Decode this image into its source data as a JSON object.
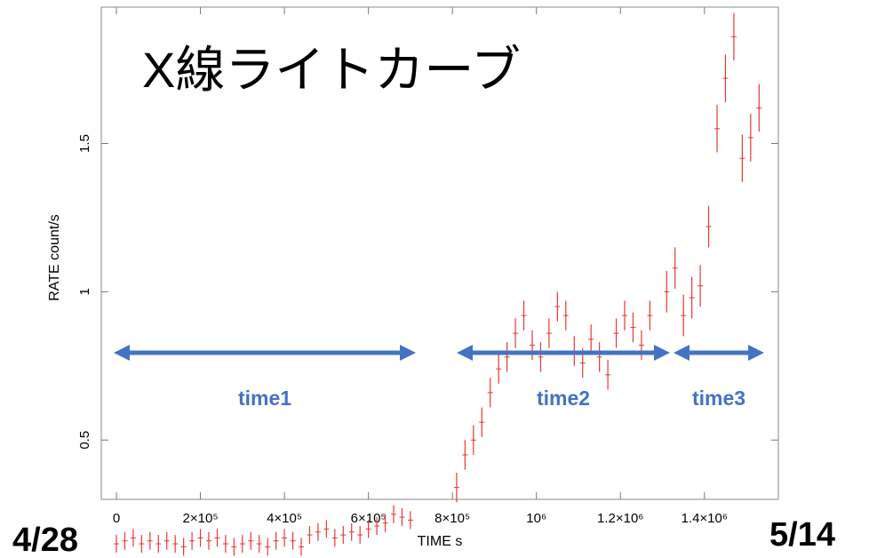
{
  "slide": {
    "title": "X線ライトカーブ",
    "date_start": "4/28",
    "date_end": "5/14"
  },
  "colors": {
    "points": "#e53935",
    "arrow": "#4472c4",
    "axis": "#555555",
    "text": "#000000"
  },
  "chart_data": {
    "type": "scatter",
    "title": "",
    "xlabel": "TIME  s",
    "ylabel": "RATE  count/s",
    "xlim": [
      0,
      1540000
    ],
    "ylim": [
      0.3,
      1.96
    ],
    "x_ticks": [
      {
        "value": 0,
        "label": "0"
      },
      {
        "value": 200000,
        "label": "2×10⁵"
      },
      {
        "value": 400000,
        "label": "4×10⁵"
      },
      {
        "value": 600000,
        "label": "6×10⁵"
      },
      {
        "value": 800000,
        "label": "8×10⁵"
      },
      {
        "value": 1000000,
        "label": "10⁶"
      },
      {
        "value": 1200000,
        "label": "1.2×10⁶"
      },
      {
        "value": 1400000,
        "label": "1.4×10⁶"
      }
    ],
    "y_ticks": [
      {
        "value": 0.5,
        "label": "0.5"
      },
      {
        "value": 1,
        "label": "1"
      },
      {
        "value": 1.5,
        "label": "1.5"
      }
    ],
    "series": [
      {
        "x": [
          0,
          20000,
          40000,
          60000,
          80000,
          100000,
          120000,
          140000,
          160000,
          180000,
          200000,
          220000,
          240000,
          260000,
          280000,
          300000,
          320000,
          340000,
          360000,
          380000,
          400000,
          420000,
          440000,
          460000,
          480000,
          500000,
          520000,
          540000,
          560000,
          580000,
          600000,
          620000,
          640000,
          660000,
          680000,
          700000,
          810000,
          830000,
          850000,
          870000,
          890000,
          910000,
          930000,
          950000,
          970000,
          990000,
          1010000,
          1030000,
          1050000,
          1070000,
          1090000,
          1110000,
          1130000,
          1150000,
          1170000,
          1190000,
          1210000,
          1230000,
          1250000,
          1270000,
          1310000,
          1330000,
          1350000,
          1370000,
          1390000,
          1410000,
          1430000,
          1450000,
          1470000,
          1490000,
          1510000,
          1530000
        ],
        "y": [
          0.15,
          0.16,
          0.17,
          0.15,
          0.16,
          0.15,
          0.16,
          0.15,
          0.14,
          0.16,
          0.17,
          0.16,
          0.17,
          0.15,
          0.14,
          0.15,
          0.16,
          0.15,
          0.14,
          0.16,
          0.17,
          0.16,
          0.14,
          0.18,
          0.19,
          0.2,
          0.17,
          0.18,
          0.19,
          0.18,
          0.2,
          0.21,
          0.22,
          0.25,
          0.24,
          0.23,
          0.34,
          0.45,
          0.5,
          0.56,
          0.66,
          0.74,
          0.78,
          0.86,
          0.92,
          0.82,
          0.78,
          0.86,
          0.95,
          0.92,
          0.8,
          0.76,
          0.84,
          0.78,
          0.72,
          0.86,
          0.92,
          0.88,
          0.82,
          0.92,
          1.0,
          1.08,
          0.92,
          0.98,
          1.02,
          1.22,
          1.55,
          1.72,
          1.86,
          1.45,
          1.52,
          1.62
        ],
        "yerr": [
          0.03,
          0.03,
          0.03,
          0.03,
          0.03,
          0.03,
          0.03,
          0.03,
          0.03,
          0.03,
          0.03,
          0.03,
          0.03,
          0.03,
          0.03,
          0.03,
          0.03,
          0.03,
          0.03,
          0.03,
          0.03,
          0.03,
          0.03,
          0.03,
          0.03,
          0.03,
          0.03,
          0.03,
          0.03,
          0.03,
          0.03,
          0.03,
          0.03,
          0.03,
          0.03,
          0.03,
          0.05,
          0.05,
          0.05,
          0.05,
          0.05,
          0.05,
          0.05,
          0.05,
          0.05,
          0.05,
          0.05,
          0.05,
          0.05,
          0.05,
          0.05,
          0.05,
          0.05,
          0.05,
          0.05,
          0.05,
          0.05,
          0.05,
          0.05,
          0.05,
          0.07,
          0.07,
          0.07,
          0.07,
          0.07,
          0.07,
          0.08,
          0.08,
          0.08,
          0.08,
          0.08,
          0.08
        ]
      }
    ],
    "annotations": [
      {
        "label": "time1",
        "x_start": 0,
        "x_end": 700000,
        "y": 0.68
      },
      {
        "label": "time2",
        "x_start": 800000,
        "x_end": 1300000,
        "y": 0.68
      },
      {
        "label": "time3",
        "x_start": 1300000,
        "x_end": 1530000,
        "y": 0.68
      }
    ],
    "grid": false
  }
}
